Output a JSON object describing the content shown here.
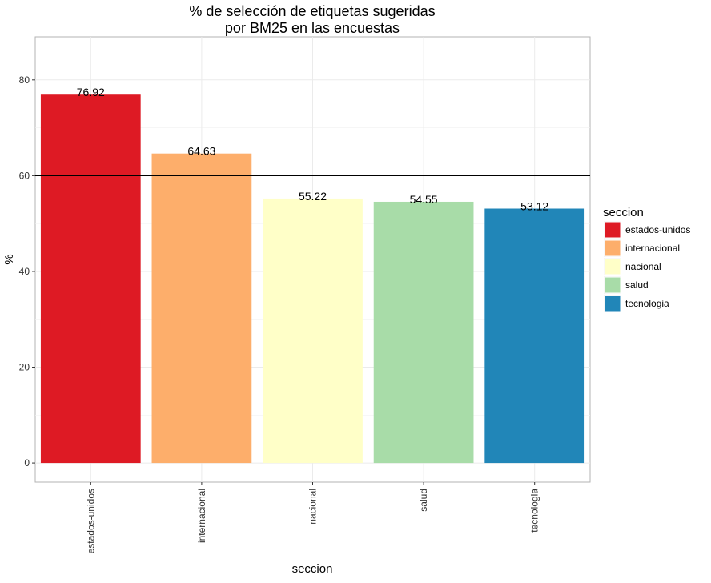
{
  "chart_data": {
    "type": "bar",
    "title_lines": [
      "% de selección de etiquetas sugeridas",
      "por BM25 en las encuestas"
    ],
    "xlabel": "seccion",
    "ylabel": "%",
    "categories": [
      "estados-unidos",
      "internacional",
      "nacional",
      "salud",
      "tecnologia"
    ],
    "values": [
      76.92,
      64.63,
      55.22,
      54.55,
      53.12
    ],
    "value_labels": [
      "76.92",
      "64.63",
      "55.22",
      "54.55",
      "53.12"
    ],
    "colors": [
      "#de1a24",
      "#fdae6b",
      "#ffffc8",
      "#a8dca8",
      "#2186b8"
    ],
    "ylim": [
      -4,
      89
    ],
    "yticks": [
      0,
      20,
      40,
      60,
      80
    ],
    "reference_line": 60,
    "grid": true,
    "legend": {
      "title": "seccion",
      "position": "right",
      "entries": [
        "estados-unidos",
        "internacional",
        "nacional",
        "salud",
        "tecnologia"
      ]
    }
  }
}
